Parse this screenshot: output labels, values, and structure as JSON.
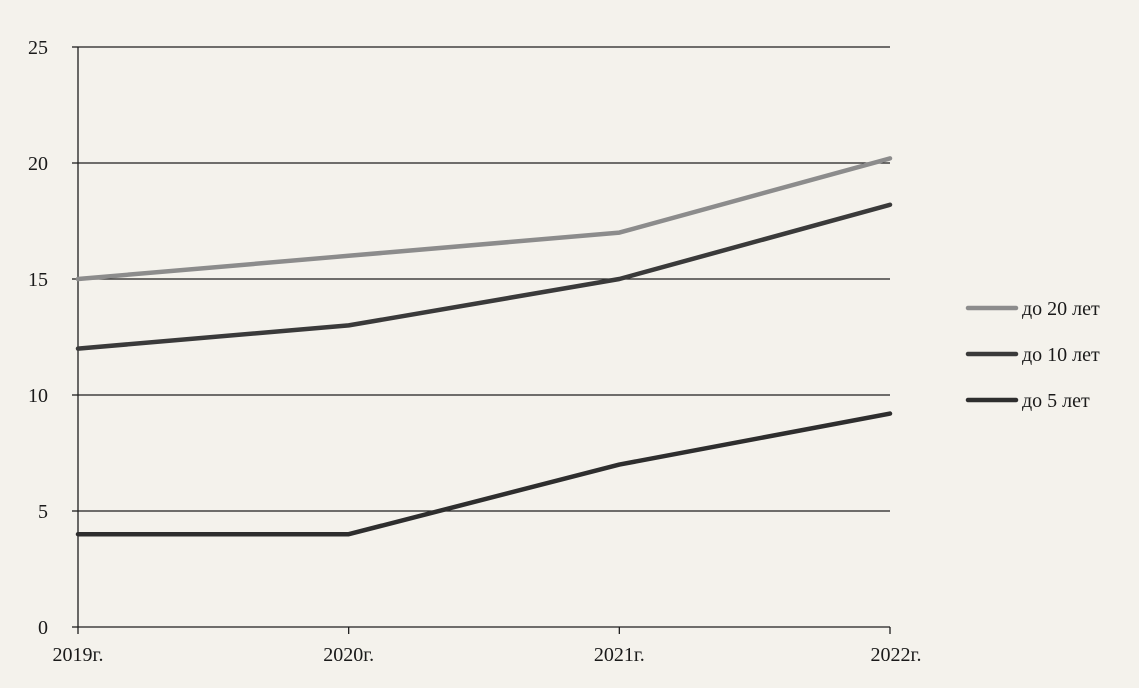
{
  "chart_data": {
    "type": "line",
    "title": "",
    "xlabel": "",
    "ylabel": "",
    "categories": [
      "2019г.",
      "2020г.",
      "2021г.",
      "2022г."
    ],
    "ylim": [
      0,
      25
    ],
    "yticks": [
      0,
      5,
      10,
      15,
      20,
      25
    ],
    "grid": "horizontal",
    "legend_position": "right",
    "series": [
      {
        "name": "до 20 лет",
        "values": [
          15,
          16,
          17,
          20.2
        ],
        "color": "#8c8c8c"
      },
      {
        "name": "до 10 лет",
        "values": [
          12,
          13,
          15,
          18.2
        ],
        "color": "#3a3a3a"
      },
      {
        "name": "до 5 лет",
        "values": [
          4,
          4,
          7,
          9.2
        ],
        "color": "#2e2e2e"
      }
    ]
  }
}
